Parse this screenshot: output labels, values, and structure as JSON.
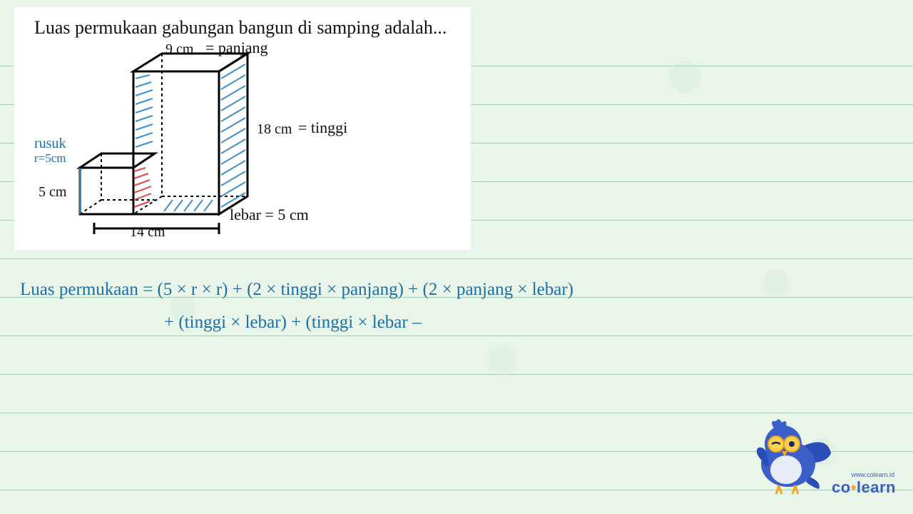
{
  "background_color": "#e8f5e8",
  "ruled_line_color": "#a8c8b0",
  "ruled_line_positions": [
    92,
    146,
    200,
    254,
    308,
    362,
    416,
    470,
    524,
    578,
    632,
    686
  ],
  "question_text": "Luas permukaan gabungan bangun di samping adalah...",
  "figure": {
    "dim_top": "9 cm",
    "dim_top_annot": "= panjang",
    "dim_height": "18 cm",
    "dim_height_annot": "= tinggi",
    "dim_left": "5 cm",
    "dim_bottom": "14 cm",
    "lebar_annot": "lebar = 5 cm",
    "rusuk_label": "rusuk",
    "rusuk_value": "r=5cm",
    "stroke_black": "#000000",
    "stroke_blue": "#2b7fb8",
    "stroke_red": "#d93838",
    "hatch_blue": "#3b90cf",
    "hatch_red": "#e24545"
  },
  "formula_line1": "Luas permukaan = (5 × r × r) + (2 × tinggi × panjang) + (2 × panjang × lebar)",
  "formula_line2": "+ (tinggi × lebar) + (tinggi × lebar –",
  "brand_co": "co",
  "brand_learn": "learn",
  "site_url": "www.colearn.id"
}
